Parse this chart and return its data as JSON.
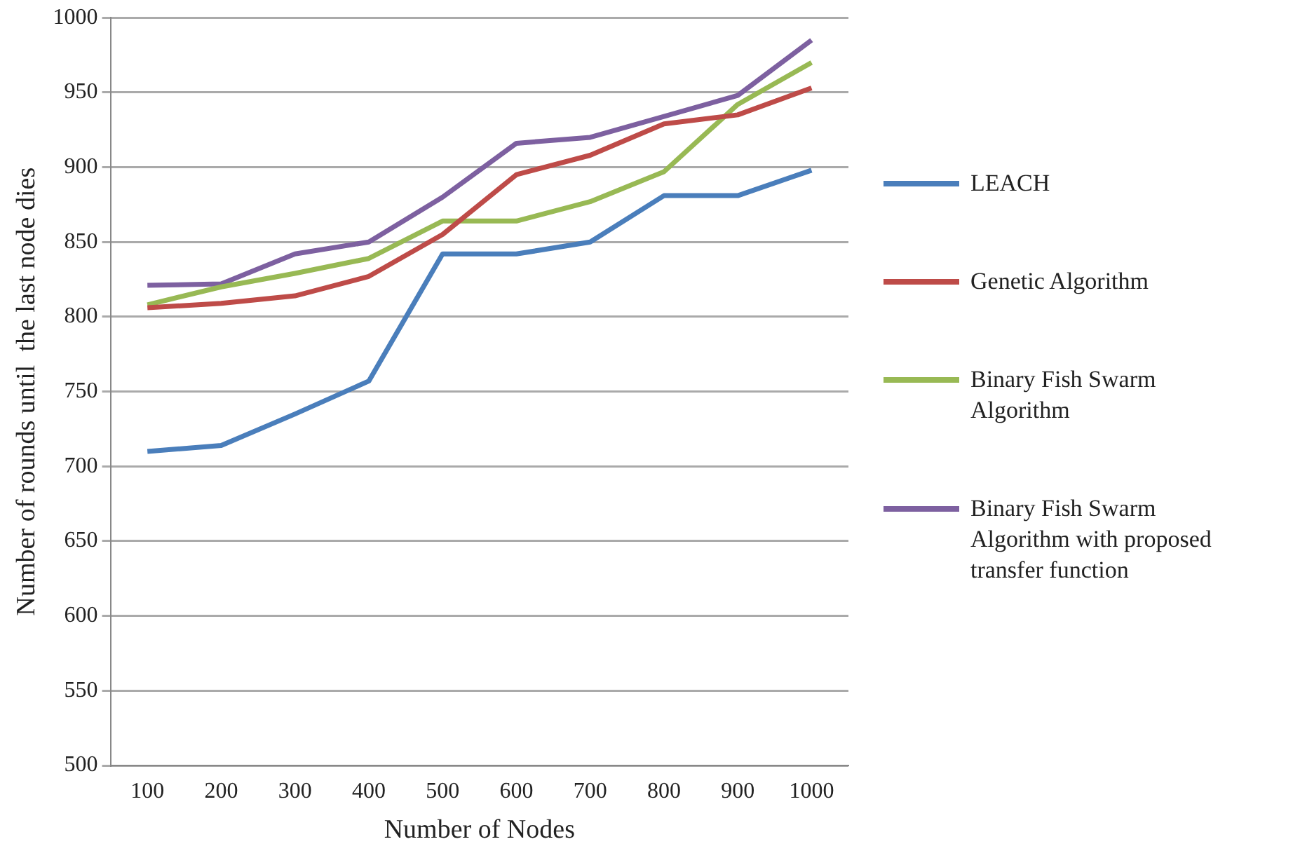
{
  "chart_data": {
    "type": "line",
    "xlabel": "Number of Nodes",
    "ylabel": "Number of rounds until  the last node dies",
    "categories": [
      "100",
      "200",
      "300",
      "400",
      "500",
      "600",
      "700",
      "800",
      "900",
      "1000"
    ],
    "series": [
      {
        "name": "LEACH",
        "color": "#4a7ebb",
        "values": [
          710,
          714,
          735,
          757,
          842,
          842,
          850,
          881,
          881,
          898
        ]
      },
      {
        "name": "Genetic Algorithm",
        "color": "#be4b48",
        "values": [
          806,
          809,
          814,
          827,
          855,
          895,
          908,
          929,
          935,
          953
        ]
      },
      {
        "name": "Binary Fish Swarm Algorithm",
        "color": "#98b954",
        "values": [
          808,
          820,
          829,
          839,
          864,
          864,
          877,
          897,
          942,
          970
        ]
      },
      {
        "name": "Binary Fish Swarm Algorithm with proposed transfer function",
        "color": "#7d60a0",
        "values": [
          821,
          822,
          842,
          850,
          880,
          916,
          920,
          934,
          948,
          985
        ]
      }
    ],
    "ylim": [
      500,
      1000
    ],
    "yticks": [
      500,
      550,
      600,
      650,
      700,
      750,
      800,
      850,
      900,
      950,
      1000
    ],
    "grid": "y",
    "legend": "right",
    "marker": "none",
    "line_style": "solid"
  }
}
